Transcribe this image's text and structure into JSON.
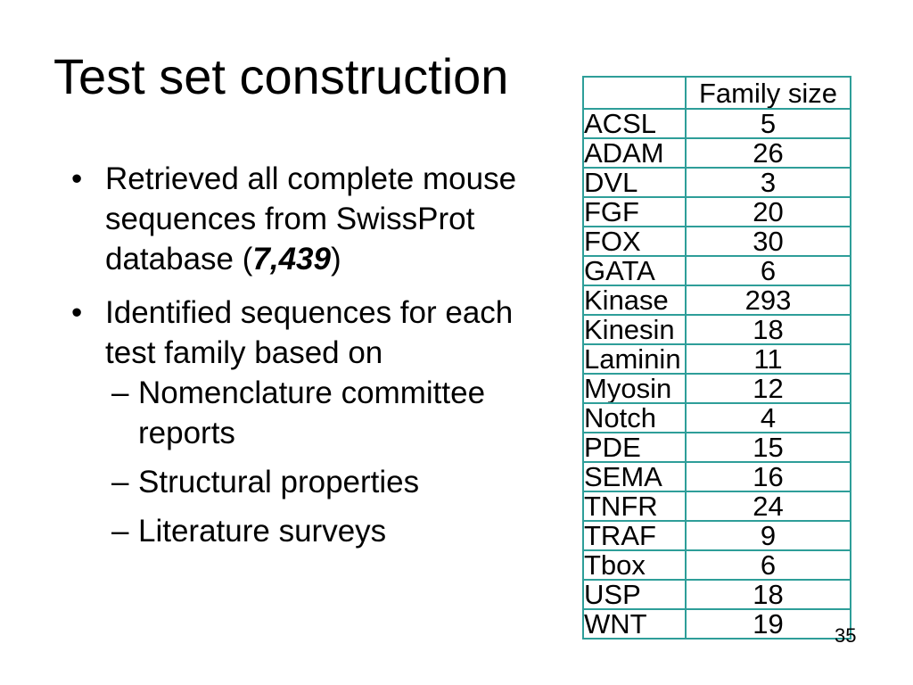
{
  "title": "Test set construction",
  "markers": {
    "level1": "•",
    "level2": "–"
  },
  "bullets": {
    "b1": {
      "line1": "Retrieved all complete mouse",
      "line2": "sequences from SwissProt",
      "line3_pre": "database (",
      "line3_num": "7,439",
      "line3_post": ")"
    },
    "b2": {
      "line1": "Identified sequences for each",
      "line2": "test family based on"
    },
    "s1": {
      "line1": "Nomenclature committee",
      "line2": "reports"
    },
    "s2": {
      "line1": "Structural properties"
    },
    "s3": {
      "line1": "Literature surveys"
    }
  },
  "table": {
    "header": "Family size",
    "rows": [
      {
        "family": "ACSL",
        "size": "5"
      },
      {
        "family": "ADAM",
        "size": "26"
      },
      {
        "family": "DVL",
        "size": "3"
      },
      {
        "family": "FGF",
        "size": "20"
      },
      {
        "family": "FOX",
        "size": "30"
      },
      {
        "family": "GATA",
        "size": "6"
      },
      {
        "family": "Kinase",
        "size": "293"
      },
      {
        "family": "Kinesin",
        "size": "18"
      },
      {
        "family": "Laminin",
        "size": "11"
      },
      {
        "family": "Myosin",
        "size": "12"
      },
      {
        "family": "Notch",
        "size": "4"
      },
      {
        "family": "PDE",
        "size": "15"
      },
      {
        "family": "SEMA",
        "size": "16"
      },
      {
        "family": "TNFR",
        "size": "24"
      },
      {
        "family": "TRAF",
        "size": "9"
      },
      {
        "family": "Tbox",
        "size": "6"
      },
      {
        "family": "USP",
        "size": "18"
      },
      {
        "family": "WNT",
        "size": "19"
      }
    ]
  },
  "page_number": "35",
  "colors": {
    "background": "#ffffff",
    "text": "#000000",
    "table_border": "#2E9E99"
  }
}
